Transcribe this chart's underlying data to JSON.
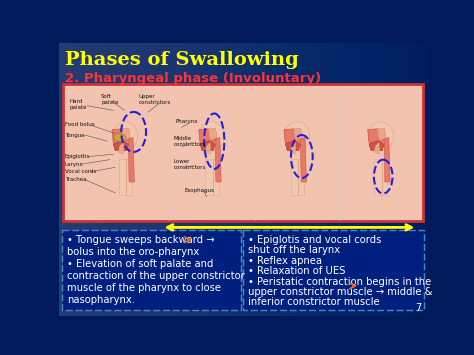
{
  "title": "Phases of Swallowing",
  "subtitle": "2. Pharyngeal phase (Involuntary)",
  "title_color": "#FFFF00",
  "subtitle_color": "#FF3333",
  "bg_color": "#001A5C",
  "bg_color2": "#002080",
  "diagram_bg": "#F2C4B0",
  "diagram_border": "#CC3333",
  "left_box_text_line1": "• Tongue sweeps backward →",
  "left_box_text_line2": "bolus into the oro-pharynx",
  "left_box_text_line3": "• Elevation of soft palate and",
  "left_box_text_line4": "contraction of the upper constrictor",
  "left_box_text_line5": "muscle of the pharynx to close",
  "left_box_text_line6": "nasopharynx.",
  "right_box_text_line1": "• Epiglotis and vocal cords",
  "right_box_text_line2": "shut off the larynx",
  "right_box_text_line3": "• Reflex apnea",
  "right_box_text_line4": "• Relaxation of UES",
  "right_box_text_line5": "• Peristatic contraction begins in the",
  "right_box_text_line6": "upper constrictor muscle → middle &",
  "right_box_text_line7": "inferior constrictor muscle",
  "text_color": "#FFFFFF",
  "box_border_color": "#4488CC",
  "arrow_color": "#FFFF00",
  "orange_arrow": "#FF6600",
  "slide_number": "7",
  "skin_light": "#F0C8B0",
  "skin_med": "#E8A888",
  "skin_dark": "#D08870",
  "flesh_red": "#CC5544",
  "flesh_dark": "#AA3322",
  "flesh_pink": "#E87868",
  "diagram_labels_color": "#111111",
  "dashed_oval_color": "#2222DD",
  "vertical_line_color": "#CCCCCC"
}
